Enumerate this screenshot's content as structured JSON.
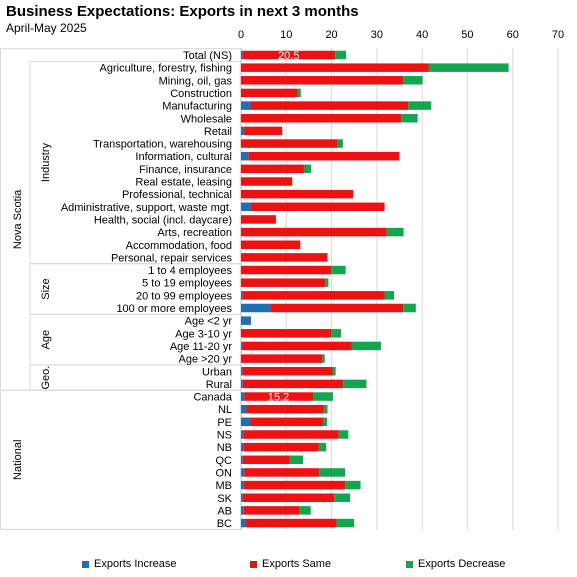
{
  "chart_data": {
    "type": "bar",
    "orientation": "horizontal",
    "stacked": true,
    "title": "Business Expectations: Exports in next 3 months",
    "subtitle": "April-May 2025",
    "xlim": [
      0,
      70
    ],
    "xticks": [
      "0",
      "10",
      "20",
      "30",
      "40",
      "50",
      "60",
      "70"
    ],
    "grid": true,
    "legend_position": "bottom",
    "colors": {
      "increase": "#1f6fb2",
      "same": "#ee1111",
      "decrease": "#11a64f"
    },
    "series": [
      {
        "name": "Exports Increase",
        "key": "increase"
      },
      {
        "name": "Exports Same",
        "key": "same"
      },
      {
        "name": "Exports Decrease",
        "key": "decrease"
      }
    ],
    "categories": [
      "Total (NS)",
      "Agriculture, forestry, fishing",
      "Mining, oil, gas",
      "Construction",
      "Manufacturing",
      "Wholesale",
      "Retail",
      "Transportation, warehousing",
      "Information, cultural",
      "Finance, insurance",
      "Real estate, leasing",
      "Professional, technical",
      "Administrative, support, waste mgt.",
      "Health, social (incl. daycare)",
      "Arts, recreation",
      "Accommodation, food",
      "Personal, repair services",
      "1 to 4 employees",
      "5 to 19 employees",
      "20 to 99 employees",
      "100 or more employees",
      "Age <2 yr",
      "Age 3-10 yr",
      "Age 11-20 yr",
      "Age >20 yr",
      "Urban",
      "Rural",
      "Canada",
      "NL",
      "PE",
      "NS",
      "NB",
      "QC",
      "ON",
      "MB",
      "SK",
      "AB",
      "BC"
    ],
    "values": {
      "increase": [
        0.3,
        0,
        0,
        0,
        2.1,
        0,
        0.6,
        0,
        1.6,
        0,
        0,
        0,
        2.2,
        0,
        0,
        0,
        0,
        0,
        0,
        0.3,
        6.5,
        2.2,
        0,
        0.3,
        0,
        0.3,
        0.4,
        0.7,
        1.2,
        2,
        0.5,
        0.5,
        0.4,
        0.7,
        0.6,
        0.4,
        0.6,
        1
      ],
      "same": [
        20.5,
        41.5,
        35.8,
        12.5,
        34.8,
        35.4,
        8.5,
        21.3,
        33.4,
        13.9,
        11.3,
        24.8,
        29.5,
        7.7,
        32.2,
        13.1,
        19.1,
        19.9,
        18.6,
        31.4,
        29.3,
        0,
        19.9,
        24.1,
        17.9,
        19.9,
        22.2,
        15.2,
        17.1,
        16.1,
        21.1,
        16.7,
        10.4,
        16.6,
        22.4,
        20.2,
        12.3,
        20.1
      ],
      "decrease": [
        2.4,
        17.6,
        4.3,
        0.7,
        5.1,
        3.6,
        0,
        1.2,
        0,
        1.6,
        0,
        0,
        0,
        0,
        3.7,
        0,
        0,
        3.2,
        0.7,
        2.1,
        2.8,
        0,
        2.2,
        6.5,
        0.6,
        0.7,
        5.1,
        4.4,
        0.8,
        0.9,
        2.1,
        1.6,
        2.9,
        5.7,
        3.4,
        3.5,
        2.5,
        3.9
      ]
    },
    "data_labels": [
      {
        "category": "Total (NS)",
        "text": "20.5"
      },
      {
        "category": "Canada",
        "text": "15.2"
      }
    ],
    "groups": [
      {
        "label": "Nova Scotia",
        "level": 1,
        "from": 0,
        "to": 26
      },
      {
        "label": "Industry",
        "level": 2,
        "from": 1,
        "to": 16
      },
      {
        "label": "Size",
        "level": 2,
        "from": 17,
        "to": 20
      },
      {
        "label": "Age",
        "level": 2,
        "from": 21,
        "to": 24
      },
      {
        "label": "Geo.",
        "level": 2,
        "from": 25,
        "to": 26
      },
      {
        "label": "National",
        "level": 1,
        "from": 27,
        "to": 37
      }
    ]
  }
}
